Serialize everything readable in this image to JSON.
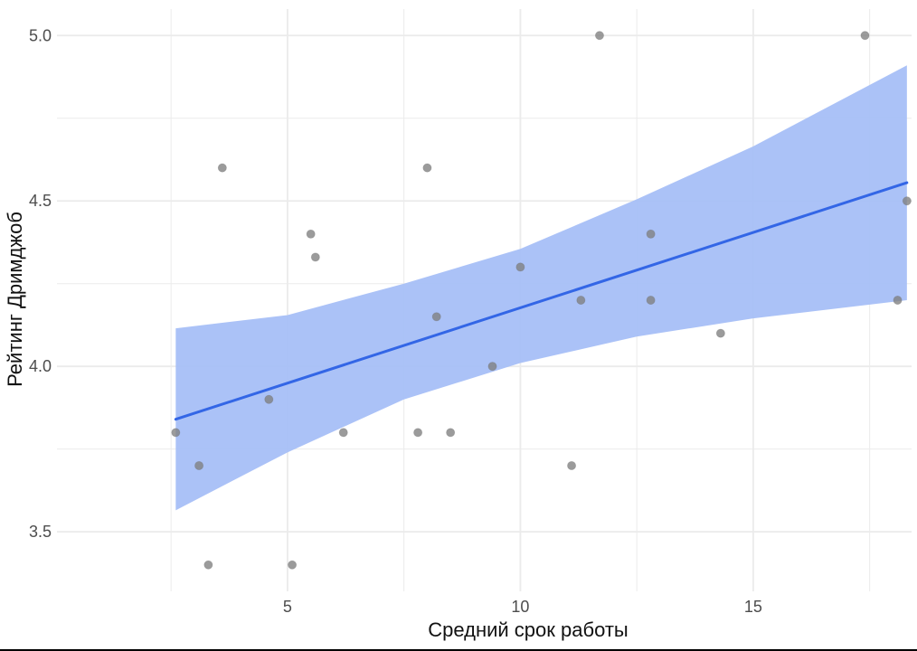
{
  "chart_data": {
    "type": "scatter",
    "xlabel": "Средний срок работы",
    "ylabel": "Рейтинг Дримджоб",
    "xlim": [
      0.05,
      18.4
    ],
    "ylim": [
      3.32,
      5.08
    ],
    "x_ticks": [
      5,
      10,
      15
    ],
    "x_tick_labels": [
      "5",
      "10",
      "15"
    ],
    "x_minor_ticks": [
      2.5,
      7.5,
      12.5,
      17.5
    ],
    "y_ticks": [
      3.5,
      4.0,
      4.5,
      5.0
    ],
    "y_tick_labels": [
      "3.5",
      "4.0",
      "4.5",
      "5.0"
    ],
    "y_minor_ticks": [
      3.75,
      4.25,
      4.75
    ],
    "grid": true,
    "colors": {
      "points": "#7f7f7f",
      "fit_line": "#3366e6",
      "confidence_band": "#a6bff7",
      "grid": "#ebebeb"
    },
    "points": [
      {
        "x": 2.6,
        "y": 3.8
      },
      {
        "x": 3.1,
        "y": 3.7
      },
      {
        "x": 3.3,
        "y": 3.4
      },
      {
        "x": 3.6,
        "y": 4.6
      },
      {
        "x": 4.6,
        "y": 3.9
      },
      {
        "x": 5.1,
        "y": 3.4
      },
      {
        "x": 5.5,
        "y": 4.4
      },
      {
        "x": 5.6,
        "y": 4.33
      },
      {
        "x": 6.2,
        "y": 3.8
      },
      {
        "x": 7.8,
        "y": 3.8
      },
      {
        "x": 8.0,
        "y": 4.6
      },
      {
        "x": 8.2,
        "y": 4.15
      },
      {
        "x": 8.5,
        "y": 3.8
      },
      {
        "x": 9.4,
        "y": 4.0
      },
      {
        "x": 10.0,
        "y": 4.3
      },
      {
        "x": 11.1,
        "y": 3.7
      },
      {
        "x": 11.3,
        "y": 4.2
      },
      {
        "x": 11.7,
        "y": 5.0
      },
      {
        "x": 12.8,
        "y": 4.4
      },
      {
        "x": 12.8,
        "y": 4.2
      },
      {
        "x": 14.3,
        "y": 4.1
      },
      {
        "x": 17.4,
        "y": 5.0
      },
      {
        "x": 18.1,
        "y": 4.2
      },
      {
        "x": 18.3,
        "y": 4.5
      }
    ],
    "fit_line": {
      "x": [
        2.6,
        18.3
      ],
      "y": [
        3.84,
        4.555
      ]
    },
    "confidence_band": {
      "x": [
        2.6,
        5.0,
        7.5,
        10.0,
        12.5,
        15.0,
        18.3
      ],
      "lower": [
        3.565,
        3.74,
        3.9,
        4.01,
        4.09,
        4.145,
        4.2
      ],
      "upper": [
        4.115,
        4.155,
        4.25,
        4.355,
        4.505,
        4.665,
        4.91
      ]
    }
  }
}
